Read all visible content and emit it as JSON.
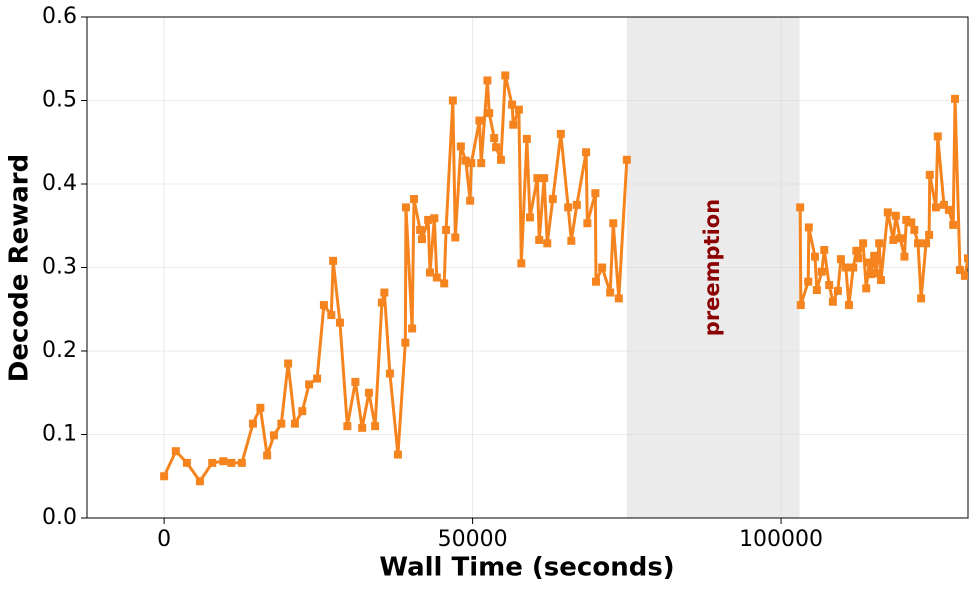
{
  "chart_data": {
    "type": "line",
    "xlabel": "Wall Time (seconds)",
    "ylabel": "Decode Reward",
    "xlim": [
      -12500,
      130300
    ],
    "ylim": [
      0,
      0.6
    ],
    "xticks": [
      0,
      50000,
      100000
    ],
    "yticks": [
      {
        "value": 0,
        "label": "0.0"
      },
      {
        "value": 0.1,
        "label": "0.1"
      },
      {
        "value": 0.2,
        "label": "0.2"
      },
      {
        "value": 0.3,
        "label": "0.3"
      },
      {
        "value": 0.4,
        "label": "0.4"
      },
      {
        "value": 0.5,
        "label": "0.5"
      },
      {
        "value": 0.6,
        "label": "0.6"
      }
    ],
    "grid": true,
    "shaded_spans": [
      {
        "start": 75000,
        "end": 103000,
        "label": "preemption",
        "color": "#ebebeb",
        "label_color": "#8b0000"
      }
    ],
    "x": [
      0,
      1900,
      3700,
      5800,
      7800,
      9600,
      10900,
      12600,
      14400,
      15600,
      16700,
      17800,
      19000,
      20100,
      21200,
      22400,
      23500,
      24800,
      25900,
      27100,
      27400,
      28500,
      29700,
      31000,
      32100,
      33200,
      34200,
      35300,
      35700,
      36600,
      37900,
      39100,
      39200,
      40200,
      40500,
      41500,
      41800,
      42800,
      43100,
      43800,
      44200,
      45400,
      45700,
      46800,
      47200,
      48100,
      48900,
      49600,
      49800,
      51100,
      51400,
      52400,
      52700,
      53500,
      53800,
      54600,
      55300,
      56400,
      56600,
      57500,
      57900,
      58800,
      59300,
      60500,
      60800,
      61600,
      62100,
      63000,
      64300,
      65500,
      66000,
      66900,
      68400,
      68600,
      69900,
      70000,
      71000,
      72300,
      72800,
      73700,
      75000,
      null,
      103100,
      103200,
      104400,
      104500,
      105500,
      105800,
      106600,
      107000,
      107800,
      108400,
      109200,
      109700,
      110500,
      111000,
      111700,
      112200,
      112500,
      113300,
      113800,
      114300,
      114600,
      115100,
      115400,
      115900,
      116200,
      117300,
      118200,
      118600,
      119300,
      120000,
      120300,
      121100,
      121600,
      122200,
      122700,
      123500,
      124000,
      124100,
      125100,
      125400,
      126400,
      127200,
      127900,
      128200,
      129000,
      129800,
      130300
    ],
    "series": [
      {
        "color": "#f5841f",
        "values": [
          0.05,
          0.08,
          0.066,
          0.044,
          0.066,
          0.068,
          0.066,
          0.066,
          0.113,
          0.132,
          0.075,
          0.099,
          0.113,
          0.185,
          0.113,
          0.128,
          0.16,
          0.167,
          0.255,
          0.243,
          0.308,
          0.234,
          0.11,
          0.163,
          0.108,
          0.15,
          0.11,
          0.258,
          0.27,
          0.173,
          0.076,
          0.21,
          0.372,
          0.227,
          0.382,
          0.345,
          0.334,
          0.357,
          0.294,
          0.359,
          0.288,
          0.281,
          0.345,
          0.5,
          0.336,
          0.445,
          0.428,
          0.38,
          0.425,
          0.476,
          0.425,
          0.524,
          0.485,
          0.455,
          0.444,
          0.429,
          0.53,
          0.495,
          0.471,
          0.489,
          0.305,
          0.454,
          0.36,
          0.407,
          0.333,
          0.407,
          0.329,
          0.382,
          0.46,
          0.372,
          0.332,
          0.375,
          0.438,
          0.353,
          0.389,
          0.283,
          0.3,
          0.27,
          0.353,
          0.263,
          0.429,
          null,
          0.372,
          0.255,
          0.283,
          0.348,
          0.313,
          0.273,
          0.295,
          0.321,
          0.279,
          0.259,
          0.272,
          0.31,
          0.3,
          0.255,
          0.3,
          0.32,
          0.311,
          0.329,
          0.275,
          0.306,
          0.292,
          0.314,
          0.293,
          0.329,
          0.285,
          0.366,
          0.333,
          0.362,
          0.335,
          0.313,
          0.357,
          0.354,
          0.345,
          0.329,
          0.263,
          0.329,
          0.339,
          0.411,
          0.372,
          0.457,
          0.375,
          0.369,
          0.351,
          0.502,
          0.297,
          0.29,
          0.311
        ]
      }
    ]
  }
}
